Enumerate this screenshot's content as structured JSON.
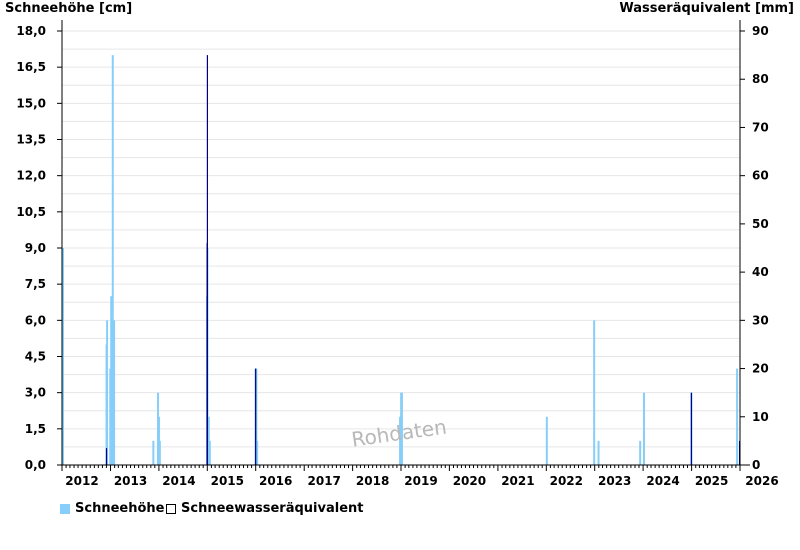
{
  "chart_data": {
    "type": "bar",
    "ylabel_left": "Schneehöhe [cm]",
    "ylabel_right": "Wasseräquivalent [mm]",
    "x_range": [
      "2012-01-01",
      "2026-01-01"
    ],
    "x_ticks": [
      "2012",
      "2013",
      "2014",
      "2015",
      "2016",
      "2017",
      "2018",
      "2019",
      "2020",
      "2021",
      "2022",
      "2023",
      "2024",
      "2025",
      "2026"
    ],
    "y_left_ticks": [
      "0,0",
      "1,5",
      "3,0",
      "4,5",
      "6,0",
      "7,5",
      "9,0",
      "10,5",
      "12,0",
      "13,5",
      "15,0",
      "16,5",
      "18,0"
    ],
    "y_left_range": [
      0,
      18
    ],
    "y_right_ticks": [
      "0",
      "10",
      "20",
      "30",
      "40",
      "50",
      "60",
      "70",
      "80",
      "90"
    ],
    "y_right_range": [
      0,
      90
    ],
    "grid": true,
    "legend_position": "bottom-left",
    "watermark": "Rohdaten",
    "colors": {
      "snow_depth": "#87cefa",
      "swe": "#000080"
    },
    "series": [
      {
        "name": "Schneehöhe",
        "axis": "left",
        "points": [
          [
            "2011-12-02",
            9.0
          ],
          [
            "2011-12-06",
            6.0
          ],
          [
            "2011-12-10",
            3.0
          ],
          [
            "2012-12-02",
            5.0
          ],
          [
            "2012-12-06",
            6.0
          ],
          [
            "2012-12-30",
            4.0
          ],
          [
            "2013-01-06",
            7.0
          ],
          [
            "2013-01-12",
            7.0
          ],
          [
            "2013-01-18",
            17.0
          ],
          [
            "2013-01-22",
            6.0
          ],
          [
            "2013-01-28",
            6.0
          ],
          [
            "2013-11-20",
            1.0
          ],
          [
            "2013-12-25",
            3.0
          ],
          [
            "2014-01-02",
            2.0
          ],
          [
            "2014-01-08",
            1.0
          ],
          [
            "2014-12-30",
            7.0
          ],
          [
            "2015-01-02",
            9.0
          ],
          [
            "2015-01-12",
            2.0
          ],
          [
            "2015-01-20",
            1.0
          ],
          [
            "2015-12-31",
            4.0
          ],
          [
            "2016-01-06",
            4.0
          ],
          [
            "2016-01-12",
            1.0
          ],
          [
            "2018-12-25",
            2.0
          ],
          [
            "2019-01-02",
            3.0
          ],
          [
            "2019-01-08",
            3.0
          ],
          [
            "2022-01-05",
            2.0
          ],
          [
            "2022-12-28",
            6.0
          ],
          [
            "2023-01-30",
            1.0
          ],
          [
            "2023-12-10",
            1.0
          ],
          [
            "2024-01-08",
            3.0
          ],
          [
            "2024-12-30",
            3.0
          ],
          [
            "2025-12-10",
            4.0
          ]
        ]
      },
      {
        "name": "Schneewasseräquivalent",
        "axis": "right",
        "points": [
          [
            "2012-12-01",
            3.5
          ],
          [
            "2014-12-30",
            46.0
          ],
          [
            "2015-01-01",
            85.0
          ],
          [
            "2015-12-31",
            20.0
          ],
          [
            "2024-12-30",
            15.0
          ],
          [
            "2025-12-28",
            5.0
          ]
        ]
      }
    ]
  }
}
